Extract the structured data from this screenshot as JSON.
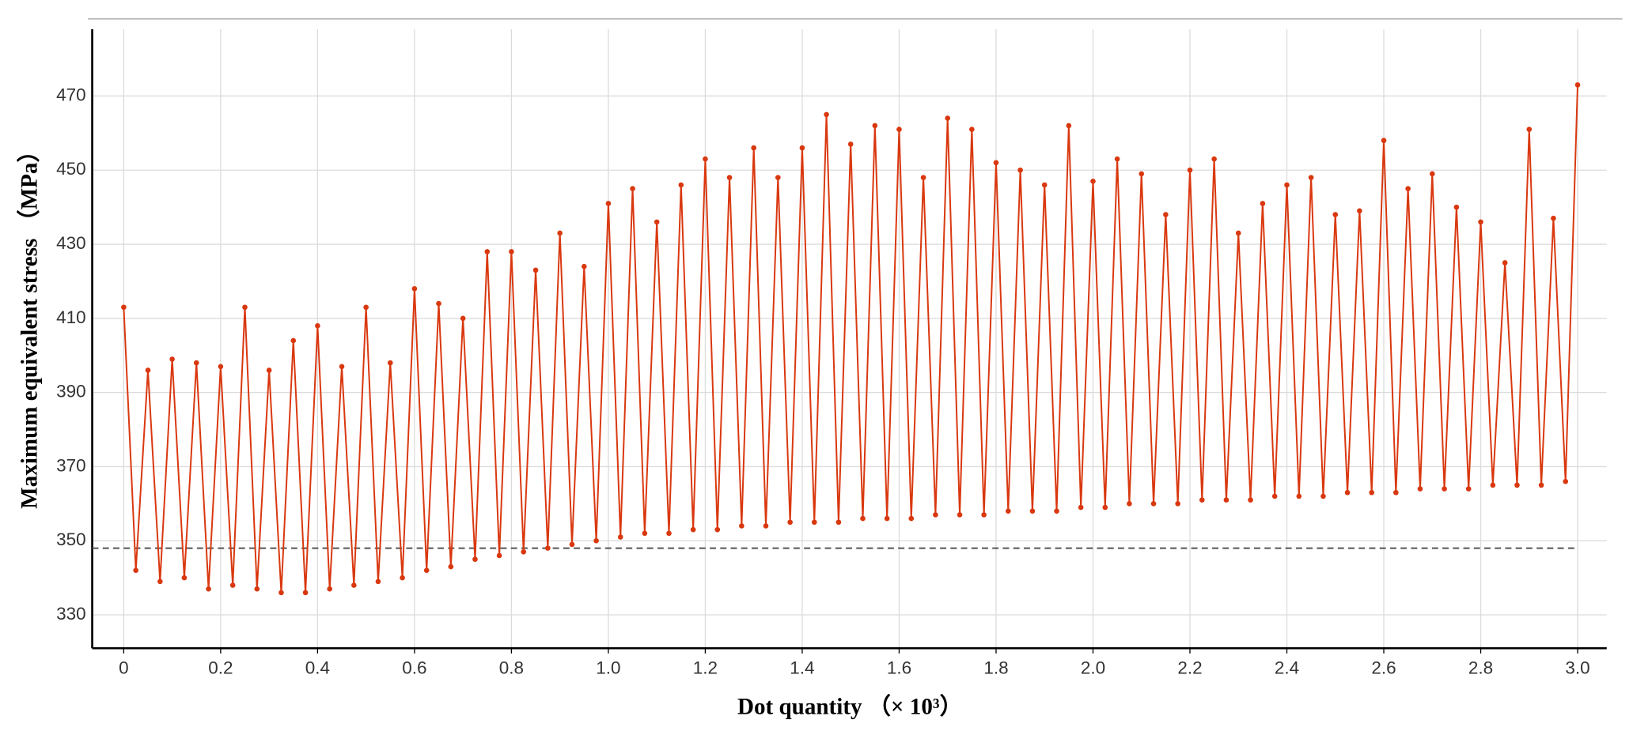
{
  "chart_data": {
    "type": "line",
    "x_label": "Dot quantity （× 10³）",
    "y_label": "Maximum equivalent stress （MPa）",
    "x": [
      0,
      0.025,
      0.05,
      0.075,
      0.1,
      0.125,
      0.15,
      0.175,
      0.2,
      0.225,
      0.25,
      0.275,
      0.3,
      0.325,
      0.35,
      0.375,
      0.4,
      0.425,
      0.45,
      0.475,
      0.5,
      0.525,
      0.55,
      0.575,
      0.6,
      0.625,
      0.65,
      0.675,
      0.7,
      0.725,
      0.75,
      0.775,
      0.8,
      0.825,
      0.85,
      0.875,
      0.9,
      0.925,
      0.95,
      0.975,
      1.0,
      1.025,
      1.05,
      1.075,
      1.1,
      1.125,
      1.15,
      1.175,
      1.2,
      1.225,
      1.25,
      1.275,
      1.3,
      1.325,
      1.35,
      1.375,
      1.4,
      1.425,
      1.45,
      1.475,
      1.5,
      1.525,
      1.55,
      1.575,
      1.6,
      1.625,
      1.65,
      1.675,
      1.7,
      1.725,
      1.75,
      1.775,
      1.8,
      1.825,
      1.85,
      1.875,
      1.9,
      1.925,
      1.95,
      1.975,
      2.0,
      2.025,
      2.05,
      2.075,
      2.1,
      2.125,
      2.15,
      2.175,
      2.2,
      2.225,
      2.25,
      2.275,
      2.3,
      2.325,
      2.35,
      2.375,
      2.4,
      2.425,
      2.45,
      2.475,
      2.5,
      2.525,
      2.55,
      2.575,
      2.6,
      2.625,
      2.65,
      2.675,
      2.7,
      2.725,
      2.75,
      2.775,
      2.8,
      2.825,
      2.85,
      2.875,
      2.9,
      2.925,
      2.95,
      2.975,
      3.0
    ],
    "series": [
      {
        "color": "#d9380f",
        "values": [
          413,
          342,
          396,
          339,
          399,
          340,
          398,
          337,
          397,
          338,
          413,
          337,
          396,
          336,
          404,
          336,
          408,
          337,
          397,
          338,
          413,
          339,
          398,
          340,
          418,
          342,
          414,
          343,
          410,
          345,
          428,
          346,
          428,
          347,
          423,
          348,
          433,
          349,
          424,
          350,
          441,
          351,
          445,
          352,
          436,
          352,
          446,
          353,
          453,
          353,
          448,
          354,
          456,
          354,
          448,
          355,
          456,
          355,
          465,
          355,
          457,
          356,
          462,
          356,
          461,
          356,
          448,
          357,
          464,
          357,
          461,
          357,
          452,
          358,
          450,
          358,
          446,
          358,
          462,
          359,
          447,
          359,
          453,
          360,
          449,
          360,
          438,
          360,
          450,
          361,
          453,
          361,
          433,
          361,
          441,
          362,
          446,
          362,
          448,
          362,
          438,
          363,
          439,
          363,
          458,
          363,
          445,
          364,
          449,
          364,
          440,
          364,
          436,
          365,
          425,
          365,
          461,
          365,
          437,
          366,
          473
        ]
      }
    ],
    "reference_line": 348,
    "xlim": [
      -0.065,
      3.06
    ],
    "ylim": [
      321,
      488
    ],
    "xticks": [
      0,
      0.2,
      0.4,
      0.6,
      0.8,
      {
        "value": 1,
        "label": "1.0"
      },
      1.2,
      1.4,
      1.6,
      1.8,
      {
        "value": 2,
        "label": "2.0"
      },
      2.2,
      2.4,
      2.6,
      2.8,
      {
        "value": 3,
        "label": "3.0"
      }
    ],
    "yticks": [
      330,
      350,
      370,
      390,
      410,
      430,
      450,
      470
    ],
    "grid": true
  }
}
